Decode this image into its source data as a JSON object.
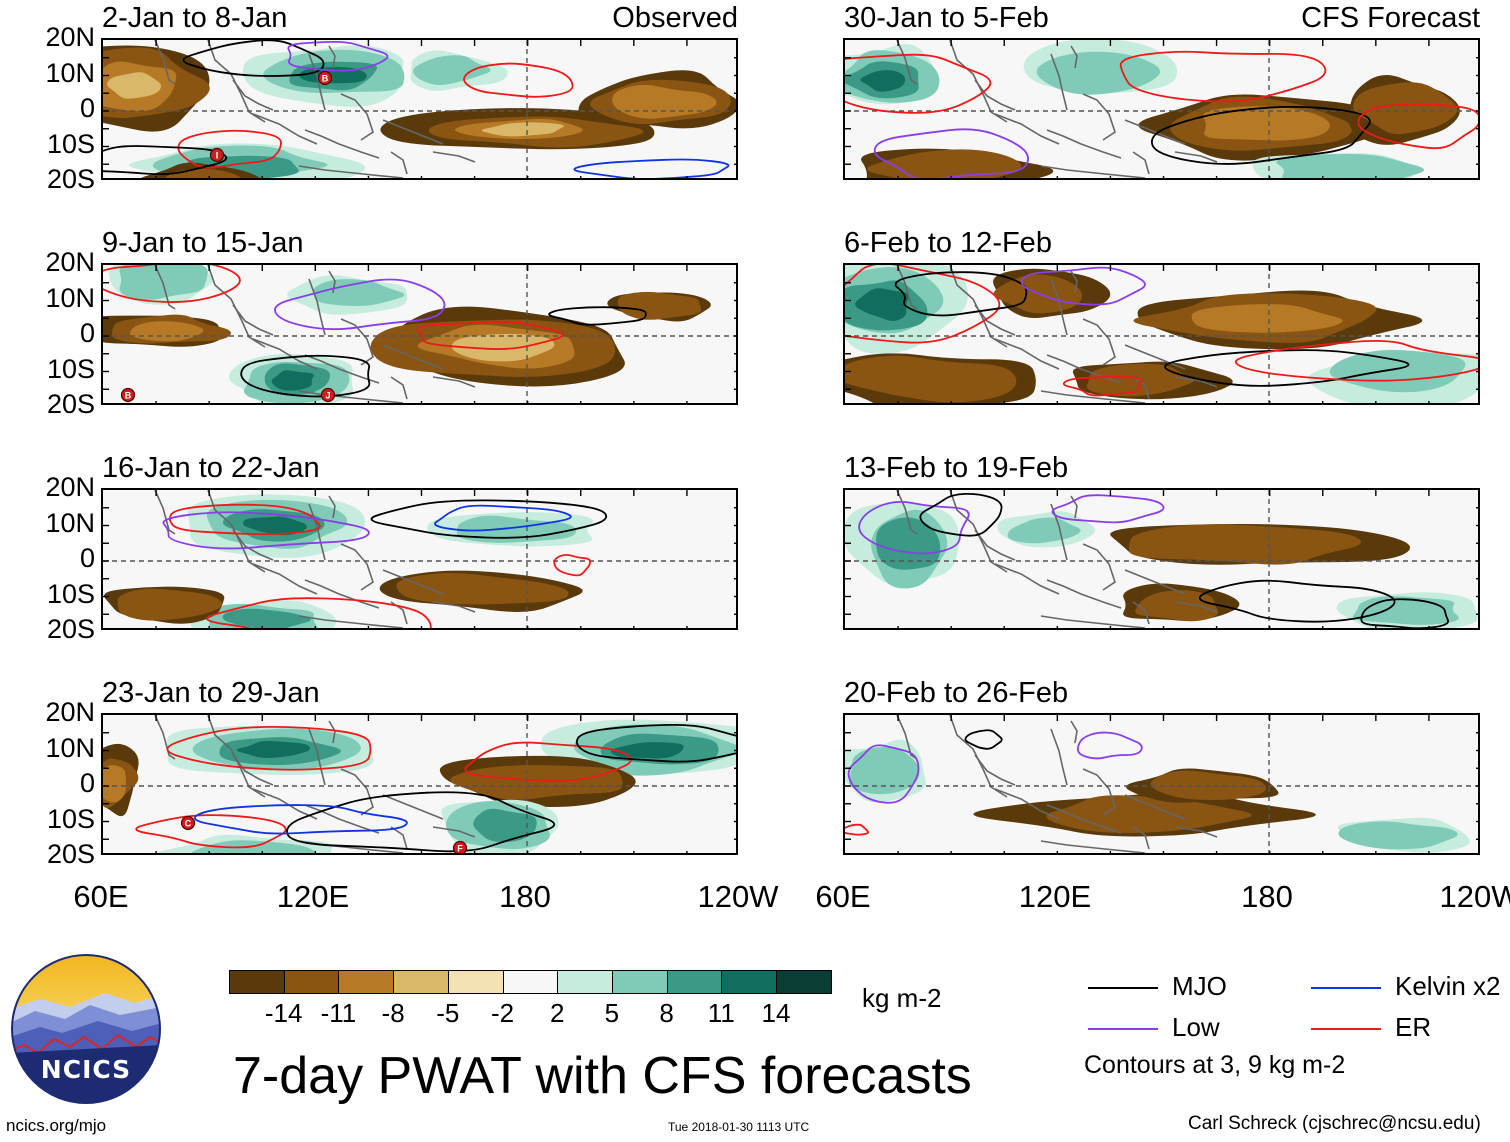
{
  "colors": {
    "brown_levels": [
      "#5a3a0a",
      "#8a5512",
      "#b67a26",
      "#dab86a",
      "#f3e1b3"
    ],
    "neutral": "#f7f7f7",
    "green_levels": [
      "#c6ecde",
      "#80cbb8",
      "#3a9a85",
      "#0f6e5e",
      "#0a3d33"
    ],
    "mjo": "#000000",
    "low": "#8a3fe6",
    "kelvin": "#1034e0",
    "er": "#ee1a1a"
  },
  "lat_labels": [
    "20N",
    "10N",
    "0",
    "10S",
    "20S"
  ],
  "lon_labels": [
    "60E",
    "120E",
    "180",
    "120W"
  ],
  "left_column_label": "Observed",
  "right_column_label": "CFS Forecast",
  "panels": [
    {
      "title": "2-Jan to 8-Jan",
      "storms": [
        "B",
        "I"
      ]
    },
    {
      "title": "9-Jan to 15-Jan",
      "storms": [
        "B",
        "J"
      ]
    },
    {
      "title": "16-Jan to 22-Jan",
      "storms": []
    },
    {
      "title": "23-Jan to 29-Jan",
      "storms": [
        "C",
        "F"
      ]
    },
    {
      "title": "30-Jan to 5-Feb",
      "storms": []
    },
    {
      "title": "6-Feb to 12-Feb",
      "storms": []
    },
    {
      "title": "13-Feb to 19-Feb",
      "storms": []
    },
    {
      "title": "20-Feb to 26-Feb",
      "storms": []
    }
  ],
  "colorbar": {
    "ticks": [
      "-14",
      "-11",
      "-8",
      "-5",
      "-2",
      "2",
      "5",
      "8",
      "11",
      "14"
    ],
    "units": "kg m-2"
  },
  "legend": {
    "mjo": "MJO",
    "low": "Low",
    "kelvin": "Kelvin x2",
    "er": "ER",
    "contours_note": "Contours at 3, 9 kg m-2"
  },
  "logo_text": "NCICS",
  "main_title": "7-day PWAT with CFS forecasts",
  "footer": {
    "website": "ncics.org/mjo",
    "timestamp": "Tue 2018-01-30 1113 UTC",
    "author": "Carl Schreck (cjschrec@ncsu.edu)"
  }
}
